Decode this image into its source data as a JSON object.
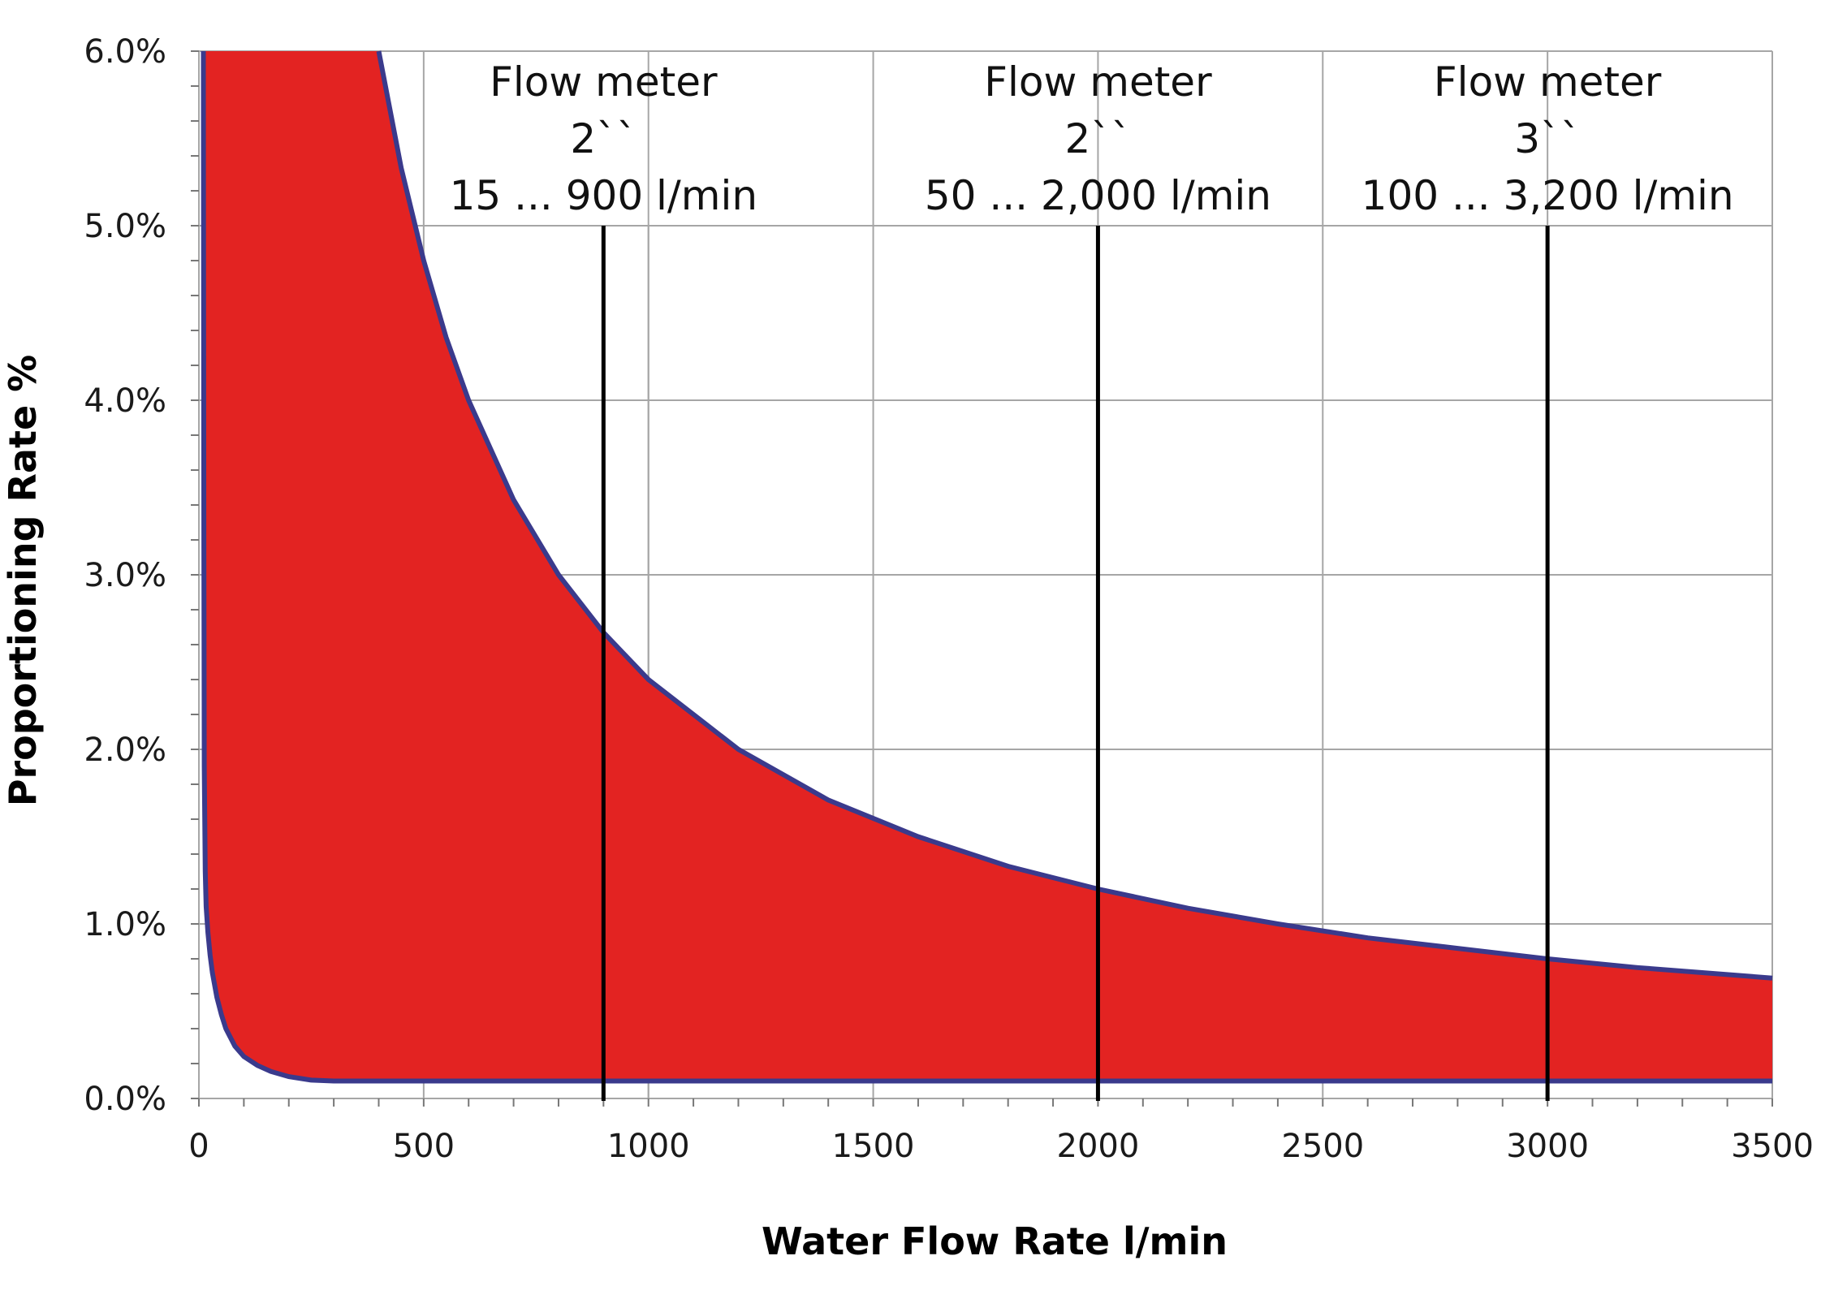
{
  "chart_data": {
    "type": "area",
    "xlabel": "Water Flow Rate l/min",
    "ylabel": "Proportioning Rate %",
    "xlim": [
      0,
      3500
    ],
    "ylim": [
      0,
      6
    ],
    "x_ticks": [
      "0",
      "500",
      "1000",
      "1500",
      "2000",
      "2500",
      "3000",
      "3500"
    ],
    "y_ticks": [
      "0.0%",
      "1.0%",
      "2.0%",
      "3.0%",
      "4.0%",
      "5.0%",
      "6.0%"
    ],
    "grid": true,
    "colors": {
      "fill": "#e32322",
      "boundary": "#3a3a8c",
      "grid": "#a6a6a6",
      "marker": "#000000"
    },
    "series": [
      {
        "role": "upper-boundary",
        "x": [
          400,
          450,
          500,
          550,
          600,
          700,
          800,
          900,
          1000,
          1200,
          1400,
          1600,
          1800,
          2000,
          2200,
          2400,
          2600,
          2800,
          3000,
          3200,
          3500
        ],
        "y": [
          6.0,
          5.33,
          4.8,
          4.36,
          4.0,
          3.43,
          3.0,
          2.67,
          2.4,
          2.0,
          1.71,
          1.5,
          1.33,
          1.2,
          1.09,
          1.0,
          0.92,
          0.86,
          0.8,
          0.75,
          0.69
        ]
      },
      {
        "role": "lower-boundary",
        "x": [
          10,
          11,
          12,
          14,
          16,
          20,
          25,
          30,
          40,
          50,
          60,
          80,
          100,
          130,
          160,
          200,
          250,
          300,
          350,
          500,
          1000,
          2000,
          3000,
          3500
        ],
        "y": [
          6.0,
          3.2,
          1.9,
          1.3,
          1.1,
          0.95,
          0.82,
          0.72,
          0.58,
          0.48,
          0.4,
          0.3,
          0.24,
          0.19,
          0.155,
          0.125,
          0.105,
          0.1,
          0.1,
          0.1,
          0.1,
          0.1,
          0.1,
          0.1
        ]
      }
    ],
    "flow_meters": [
      {
        "title": "Flow meter",
        "size": "2``",
        "range": "15 ... 900 l/min",
        "x": 900
      },
      {
        "title": "Flow meter",
        "size": "2``",
        "range": "50 ... 2,000 l/min",
        "x": 2000
      },
      {
        "title": "Flow meter",
        "size": "3``",
        "range": "100 ... 3,200 l/min",
        "x": 3000
      }
    ]
  }
}
